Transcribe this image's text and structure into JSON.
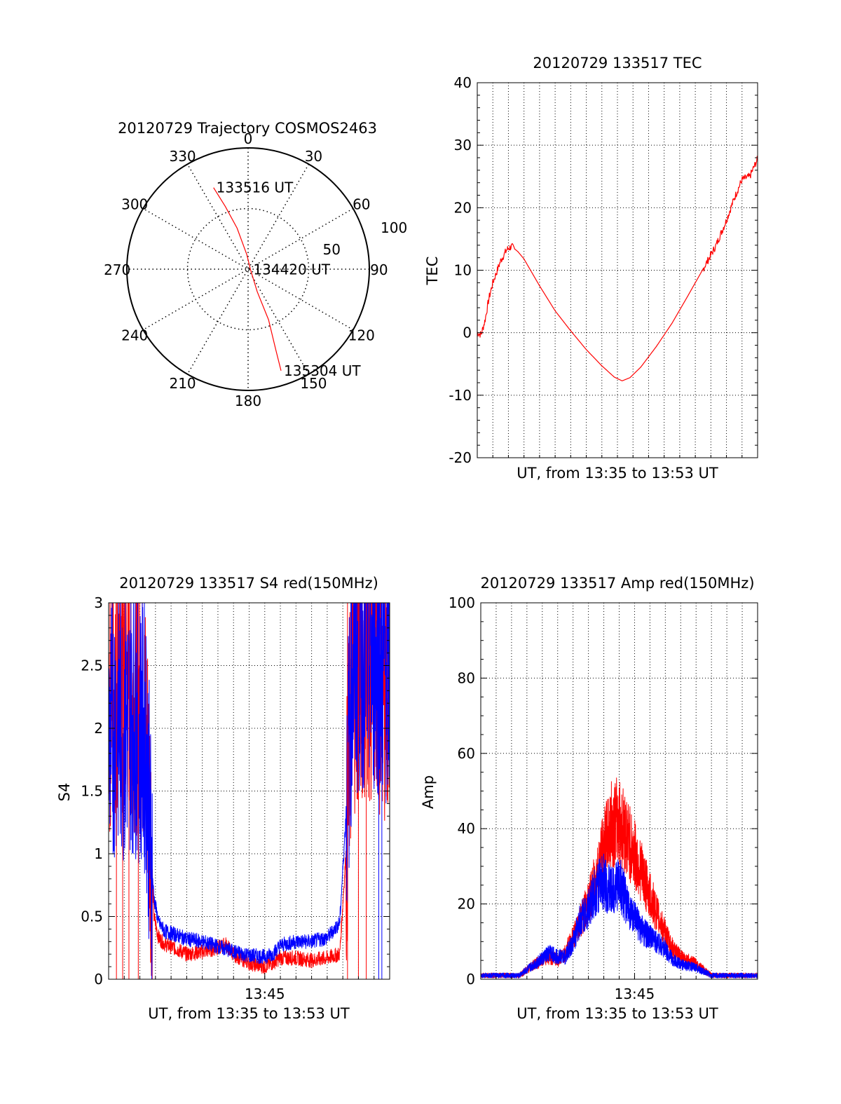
{
  "colors": {
    "red": "#ff0000",
    "blue": "#0000ff",
    "axis": "#000000",
    "grid": "#000000"
  },
  "chart_data": [
    {
      "id": "trajectory",
      "type": "polar",
      "title": "20120729 Trajectory COSMOS2463",
      "angle_labels": [
        "0",
        "30",
        "60",
        "90",
        "120",
        "150",
        "180",
        "210",
        "240",
        "270",
        "300",
        "330"
      ],
      "radial_labels": [
        "50",
        "100"
      ],
      "rlim": [
        0,
        100
      ],
      "grid": true,
      "series": [
        {
          "color": "#ff0000",
          "points": [
            {
              "az": 337,
              "r": 73
            },
            {
              "az": 340,
              "r": 55
            },
            {
              "az": 345,
              "r": 35
            },
            {
              "az": 355,
              "r": 12
            },
            {
              "az": 100,
              "r": 2
            },
            {
              "az": 158,
              "r": 20
            },
            {
              "az": 158,
              "r": 45
            },
            {
              "az": 161,
              "r": 70
            },
            {
              "az": 162,
              "r": 88
            }
          ]
        }
      ],
      "annotations": [
        {
          "text": "133516 UT",
          "az": 337,
          "r": 73
        },
        {
          "text": "134420 UT",
          "az": 100,
          "r": 2
        },
        {
          "text": "135304 UT",
          "az": 162,
          "r": 88
        }
      ]
    },
    {
      "id": "tec",
      "type": "line",
      "title": "20120729 133517 TEC",
      "xlabel": "UT, from 13:35 to 13:53 UT",
      "ylabel": "TEC",
      "xlim": [
        0,
        18
      ],
      "ylim": [
        -20,
        40
      ],
      "yticks": [
        "-20",
        "-10",
        "0",
        "10",
        "20",
        "30",
        "40"
      ],
      "grid": true,
      "series": [
        {
          "color": "#ff0000",
          "points": [
            [
              0,
              0
            ],
            [
              0.25,
              -0.3
            ],
            [
              0.5,
              2
            ],
            [
              0.75,
              5.5
            ],
            [
              1.0,
              8
            ],
            [
              1.5,
              11.5
            ],
            [
              1.9,
              13.3
            ],
            [
              2.2,
              13.8
            ],
            [
              2.6,
              13
            ],
            [
              3.0,
              11.8
            ],
            [
              4.0,
              7.5
            ],
            [
              5.0,
              3.5
            ],
            [
              6.0,
              0.3
            ],
            [
              7.0,
              -2.7
            ],
            [
              8.0,
              -5.3
            ],
            [
              8.8,
              -7.1
            ],
            [
              9.3,
              -7.7
            ],
            [
              9.8,
              -7.2
            ],
            [
              10.5,
              -5.5
            ],
            [
              11.5,
              -2.2
            ],
            [
              12.5,
              1.5
            ],
            [
              13.5,
              5.8
            ],
            [
              14.5,
              10.2
            ],
            [
              15.3,
              13.8
            ],
            [
              16.0,
              18
            ],
            [
              16.5,
              21.5
            ],
            [
              17.0,
              24.5
            ],
            [
              17.5,
              25
            ],
            [
              18.0,
              27.8
            ]
          ]
        }
      ]
    },
    {
      "id": "s4",
      "type": "line",
      "title": "20120729 133517 S4 red(150MHz)",
      "xlabel": "UT, from 13:35 to 13:53 UT",
      "ylabel": "S4",
      "xlim": [
        0,
        18
      ],
      "ylim": [
        0,
        3
      ],
      "xticks": [
        {
          "x": 10,
          "label": "13:45"
        }
      ],
      "yticks": [
        "0",
        "0.5",
        "1",
        "1.5",
        "2",
        "2.5",
        "3"
      ],
      "grid": true,
      "series": [
        {
          "color": "#ff0000",
          "points": [
            [
              0,
              2.2
            ],
            [
              0.5,
              2.4
            ],
            [
              1.0,
              2.4
            ],
            [
              1.5,
              2.3
            ],
            [
              2.0,
              2.2
            ],
            [
              2.4,
              2.0
            ],
            [
              2.7,
              1.2
            ],
            [
              2.9,
              0.5
            ],
            [
              3.2,
              0.33
            ],
            [
              3.6,
              0.28
            ],
            [
              4.2,
              0.25
            ],
            [
              5.0,
              0.2
            ],
            [
              6.0,
              0.22
            ],
            [
              7.0,
              0.25
            ],
            [
              7.5,
              0.28
            ],
            [
              8.0,
              0.2
            ],
            [
              9.0,
              0.13
            ],
            [
              10.0,
              0.1
            ],
            [
              10.5,
              0.13
            ],
            [
              11.0,
              0.17
            ],
            [
              12.0,
              0.17
            ],
            [
              13.0,
              0.15
            ],
            [
              14.0,
              0.17
            ],
            [
              14.8,
              0.2
            ],
            [
              15.2,
              1.0
            ],
            [
              15.6,
              2.4
            ],
            [
              16.5,
              2.5
            ],
            [
              17.5,
              2.4
            ],
            [
              18.0,
              2.3
            ]
          ]
        },
        {
          "color": "#0000ff",
          "points": [
            [
              0,
              1.9
            ],
            [
              0.5,
              2.1
            ],
            [
              1.0,
              2.0
            ],
            [
              1.5,
              2.1
            ],
            [
              2.0,
              2.0
            ],
            [
              2.4,
              1.9
            ],
            [
              2.7,
              1.0
            ],
            [
              2.9,
              0.65
            ],
            [
              3.2,
              0.45
            ],
            [
              3.6,
              0.38
            ],
            [
              4.2,
              0.36
            ],
            [
              5.0,
              0.32
            ],
            [
              6.0,
              0.3
            ],
            [
              7.0,
              0.26
            ],
            [
              8.0,
              0.22
            ],
            [
              9.0,
              0.19
            ],
            [
              10.0,
              0.18
            ],
            [
              10.5,
              0.2
            ],
            [
              11.0,
              0.27
            ],
            [
              12.0,
              0.3
            ],
            [
              13.0,
              0.3
            ],
            [
              14.0,
              0.33
            ],
            [
              14.8,
              0.45
            ],
            [
              15.2,
              1.3
            ],
            [
              15.6,
              2.5
            ],
            [
              16.5,
              2.6
            ],
            [
              17.5,
              2.5
            ],
            [
              18.0,
              2.4
            ]
          ]
        }
      ]
    },
    {
      "id": "amp",
      "type": "line",
      "title": "20120729 133517 Amp red(150MHz)",
      "xlabel": "UT, from 13:35 to 13:53 UT",
      "ylabel": "Amp",
      "xlim": [
        0,
        18
      ],
      "ylim": [
        0,
        100
      ],
      "xticks": [
        {
          "x": 10,
          "label": "13:45"
        }
      ],
      "yticks": [
        "0",
        "20",
        "40",
        "60",
        "80",
        "100"
      ],
      "grid": true,
      "series": [
        {
          "color": "#ff0000",
          "points": [
            [
              0,
              1
            ],
            [
              1.5,
              1
            ],
            [
              2.5,
              1
            ],
            [
              3.5,
              4
            ],
            [
              4.5,
              6
            ],
            [
              5.0,
              5
            ],
            [
              5.5,
              7
            ],
            [
              6.0,
              11
            ],
            [
              6.5,
              16
            ],
            [
              7.0,
              20
            ],
            [
              7.5,
              27
            ],
            [
              8.0,
              35
            ],
            [
              8.5,
              41
            ],
            [
              9.0,
              42
            ],
            [
              9.5,
              38
            ],
            [
              10.0,
              33
            ],
            [
              10.5,
              28
            ],
            [
              11.0,
              22
            ],
            [
              11.5,
              17
            ],
            [
              12.0,
              12
            ],
            [
              12.5,
              8
            ],
            [
              13.0,
              6
            ],
            [
              14.0,
              4
            ],
            [
              15.0,
              1
            ],
            [
              16.0,
              1
            ],
            [
              17.0,
              1
            ],
            [
              18.0,
              1
            ]
          ]
        },
        {
          "color": "#0000ff",
          "points": [
            [
              0,
              1
            ],
            [
              1.5,
              1
            ],
            [
              2.5,
              1
            ],
            [
              3.5,
              4
            ],
            [
              4.5,
              7
            ],
            [
              5.0,
              6
            ],
            [
              5.5,
              6
            ],
            [
              6.0,
              10
            ],
            [
              6.5,
              16
            ],
            [
              7.0,
              19
            ],
            [
              7.5,
              24
            ],
            [
              8.0,
              26
            ],
            [
              8.5,
              23
            ],
            [
              9.0,
              26
            ],
            [
              9.5,
              20
            ],
            [
              10.0,
              16
            ],
            [
              10.5,
              13
            ],
            [
              11.0,
              11
            ],
            [
              11.5,
              10
            ],
            [
              12.0,
              8
            ],
            [
              12.5,
              5
            ],
            [
              13.0,
              4
            ],
            [
              14.0,
              3
            ],
            [
              15.0,
              1
            ],
            [
              16.0,
              1
            ],
            [
              17.0,
              1
            ],
            [
              18.0,
              1
            ]
          ]
        }
      ]
    }
  ]
}
